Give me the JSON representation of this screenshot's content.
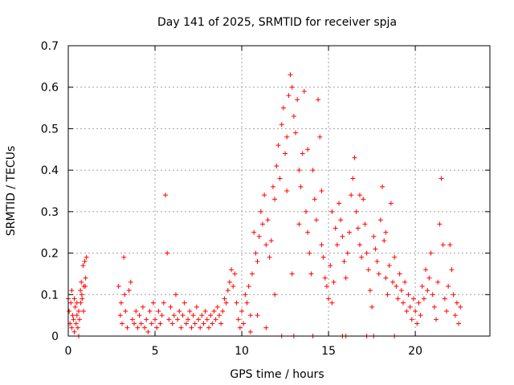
{
  "chart_data": {
    "type": "scatter",
    "title": "Day 141 of 2025, SRMTID for receiver spja",
    "xlabel": "GPS time / hours",
    "ylabel": "SRMTID / TECUs",
    "xlim": [
      0,
      24.3
    ],
    "ylim": [
      0,
      0.7
    ],
    "xticks": [
      0,
      5,
      10,
      15,
      20
    ],
    "yticks": [
      0,
      0.1,
      0.2,
      0.3,
      0.4,
      0.5,
      0.6,
      0.7
    ],
    "grid": true,
    "marker": "+",
    "color": "#ff0000",
    "series": [
      {
        "name": "SRMTID",
        "points": [
          [
            0.0,
            0.09
          ],
          [
            0.05,
            0.06
          ],
          [
            0.1,
            0.03
          ],
          [
            0.15,
            0.08
          ],
          [
            0.2,
            0.02
          ],
          [
            0.25,
            0.05
          ],
          [
            0.3,
            0.04
          ],
          [
            0.35,
            0.01
          ],
          [
            0.4,
            0.07
          ],
          [
            0.45,
            0.03
          ],
          [
            0.5,
            0.05
          ],
          [
            0.55,
            0.02
          ],
          [
            0.6,
            0.06
          ],
          [
            0.65,
            0.04
          ],
          [
            0.7,
            0.11
          ],
          [
            0.75,
            0.13
          ],
          [
            0.8,
            0.09
          ],
          [
            0.85,
            0.17
          ],
          [
            0.9,
            0.12
          ],
          [
            0.95,
            0.18
          ],
          [
            1.0,
            0.14
          ],
          [
            1.05,
            0.19
          ],
          [
            0.72,
            0.08
          ],
          [
            0.78,
            0.1
          ],
          [
            0.88,
            0.06
          ],
          [
            0.98,
            0.12
          ],
          [
            0.2,
            0.11
          ],
          [
            0.35,
            0.09
          ],
          [
            0.5,
            0.08
          ],
          [
            0.6,
            0.0
          ],
          [
            2.9,
            0.12
          ],
          [
            3.0,
            0.05
          ],
          [
            3.05,
            0.08
          ],
          [
            3.1,
            0.03
          ],
          [
            3.2,
            0.19
          ],
          [
            3.25,
            0.1
          ],
          [
            3.3,
            0.06
          ],
          [
            3.4,
            0.02
          ],
          [
            3.5,
            0.11
          ],
          [
            3.6,
            0.13
          ],
          [
            3.7,
            0.04
          ],
          [
            3.8,
            0.03
          ],
          [
            3.9,
            0.06
          ],
          [
            4.0,
            0.02
          ],
          [
            4.1,
            0.05
          ],
          [
            4.2,
            0.03
          ],
          [
            4.3,
            0.07
          ],
          [
            4.4,
            0.02
          ],
          [
            4.5,
            0.04
          ],
          [
            4.6,
            0.01
          ],
          [
            4.7,
            0.06
          ],
          [
            4.8,
            0.03
          ],
          [
            4.9,
            0.08
          ],
          [
            5.0,
            0.04
          ],
          [
            5.1,
            0.02
          ],
          [
            5.2,
            0.06
          ],
          [
            5.3,
            0.03
          ],
          [
            5.4,
            0.05
          ],
          [
            5.5,
            0.08
          ],
          [
            5.6,
            0.34
          ],
          [
            5.7,
            0.2
          ],
          [
            5.8,
            0.04
          ],
          [
            5.9,
            0.07
          ],
          [
            6.0,
            0.03
          ],
          [
            6.1,
            0.05
          ],
          [
            6.2,
            0.1
          ],
          [
            6.3,
            0.04
          ],
          [
            6.4,
            0.06
          ],
          [
            6.5,
            0.02
          ],
          [
            6.6,
            0.05
          ],
          [
            6.7,
            0.08
          ],
          [
            6.8,
            0.03
          ],
          [
            6.9,
            0.04
          ],
          [
            7.0,
            0.06
          ],
          [
            7.1,
            0.02
          ],
          [
            7.2,
            0.05
          ],
          [
            7.3,
            0.03
          ],
          [
            7.4,
            0.07
          ],
          [
            7.5,
            0.04
          ],
          [
            7.6,
            0.02
          ],
          [
            7.7,
            0.05
          ],
          [
            7.8,
            0.03
          ],
          [
            7.9,
            0.06
          ],
          [
            8.0,
            0.04
          ],
          [
            8.1,
            0.02
          ],
          [
            8.2,
            0.05
          ],
          [
            8.3,
            0.03
          ],
          [
            8.4,
            0.06
          ],
          [
            8.5,
            0.04
          ],
          [
            8.6,
            0.07
          ],
          [
            8.7,
            0.05
          ],
          [
            8.8,
            0.03
          ],
          [
            8.9,
            0.06
          ],
          [
            9.0,
            0.09
          ],
          [
            9.1,
            0.08
          ],
          [
            9.2,
            0.11
          ],
          [
            9.3,
            0.13
          ],
          [
            9.4,
            0.16
          ],
          [
            9.5,
            0.12
          ],
          [
            9.6,
            0.15
          ],
          [
            9.7,
            0.08
          ],
          [
            9.8,
            0.04
          ],
          [
            9.9,
            0.02
          ],
          [
            10.0,
            0.06
          ],
          [
            10.1,
            0.03
          ],
          [
            10.2,
            0.1
          ],
          [
            10.3,
            0.08
          ],
          [
            10.4,
            0.12
          ],
          [
            10.5,
            0.05
          ],
          [
            10.6,
            0.15
          ],
          [
            10.7,
            0.25
          ],
          [
            10.8,
            0.2
          ],
          [
            10.9,
            0.18
          ],
          [
            11.0,
            0.24
          ],
          [
            11.1,
            0.3
          ],
          [
            11.2,
            0.27
          ],
          [
            11.3,
            0.34
          ],
          [
            11.4,
            0.22
          ],
          [
            11.5,
            0.28
          ],
          [
            11.6,
            0.19
          ],
          [
            11.7,
            0.23
          ],
          [
            11.8,
            0.36
          ],
          [
            11.9,
            0.33
          ],
          [
            12.0,
            0.41
          ],
          [
            12.1,
            0.46
          ],
          [
            12.2,
            0.38
          ],
          [
            12.3,
            0.51
          ],
          [
            12.4,
            0.55
          ],
          [
            12.5,
            0.44
          ],
          [
            12.6,
            0.48
          ],
          [
            12.7,
            0.58
          ],
          [
            12.8,
            0.63
          ],
          [
            12.9,
            0.6
          ],
          [
            13.0,
            0.53
          ],
          [
            13.1,
            0.49
          ],
          [
            13.2,
            0.57
          ],
          [
            13.3,
            0.4
          ],
          [
            13.4,
            0.36
          ],
          [
            13.5,
            0.44
          ],
          [
            13.6,
            0.59
          ],
          [
            13.7,
            0.3
          ],
          [
            13.8,
            0.25
          ],
          [
            13.9,
            0.2
          ],
          [
            14.0,
            0.15
          ],
          [
            14.1,
            0.4
          ],
          [
            14.2,
            0.33
          ],
          [
            14.3,
            0.28
          ],
          [
            14.4,
            0.57
          ],
          [
            14.5,
            0.48
          ],
          [
            14.6,
            0.22
          ],
          [
            14.7,
            0.19
          ],
          [
            14.8,
            0.14
          ],
          [
            14.9,
            0.12
          ],
          [
            15.0,
            0.09
          ],
          [
            15.1,
            0.17
          ],
          [
            15.2,
            0.08
          ],
          [
            15.3,
            0.13
          ],
          [
            15.4,
            0.26
          ],
          [
            15.5,
            0.22
          ],
          [
            15.6,
            0.32
          ],
          [
            15.7,
            0.28
          ],
          [
            15.8,
            0.24
          ],
          [
            15.9,
            0.18
          ],
          [
            16.0,
            0.14
          ],
          [
            16.1,
            0.2
          ],
          [
            16.2,
            0.25
          ],
          [
            16.3,
            0.34
          ],
          [
            16.4,
            0.38
          ],
          [
            16.5,
            0.43
          ],
          [
            16.6,
            0.3
          ],
          [
            16.7,
            0.26
          ],
          [
            16.8,
            0.22
          ],
          [
            16.9,
            0.19
          ],
          [
            17.0,
            0.33
          ],
          [
            17.1,
            0.27
          ],
          [
            17.2,
            0.2
          ],
          [
            17.3,
            0.16
          ],
          [
            17.4,
            0.11
          ],
          [
            17.5,
            0.07
          ],
          [
            17.6,
            0.24
          ],
          [
            17.7,
            0.21
          ],
          [
            17.8,
            0.18
          ],
          [
            17.9,
            0.15
          ],
          [
            18.0,
            0.28
          ],
          [
            18.1,
            0.36
          ],
          [
            18.2,
            0.23
          ],
          [
            18.3,
            0.14
          ],
          [
            18.4,
            0.1
          ],
          [
            18.5,
            0.17
          ],
          [
            18.6,
            0.32
          ],
          [
            18.7,
            0.13
          ],
          [
            18.8,
            0.19
          ],
          [
            18.9,
            0.12
          ],
          [
            19.0,
            0.09
          ],
          [
            19.1,
            0.15
          ],
          [
            19.2,
            0.11
          ],
          [
            19.3,
            0.08
          ],
          [
            19.4,
            0.13
          ],
          [
            19.5,
            0.06
          ],
          [
            19.6,
            0.1
          ],
          [
            19.7,
            0.07
          ],
          [
            19.8,
            0.04
          ],
          [
            19.9,
            0.09
          ],
          [
            20.0,
            0.06
          ],
          [
            20.1,
            0.03
          ],
          [
            20.2,
            0.08
          ],
          [
            20.3,
            0.05
          ],
          [
            20.4,
            0.12
          ],
          [
            20.5,
            0.09
          ],
          [
            20.6,
            0.16
          ],
          [
            20.7,
            0.11
          ],
          [
            20.8,
            0.14
          ],
          [
            20.9,
            0.2
          ],
          [
            21.0,
            0.1
          ],
          [
            21.1,
            0.07
          ],
          [
            21.2,
            0.04
          ],
          [
            21.3,
            0.13
          ],
          [
            21.4,
            0.27
          ],
          [
            21.5,
            0.38
          ],
          [
            21.6,
            0.22
          ],
          [
            21.7,
            0.09
          ],
          [
            21.8,
            0.06
          ],
          [
            21.9,
            0.12
          ],
          [
            22.0,
            0.22
          ],
          [
            22.1,
            0.16
          ],
          [
            22.2,
            0.1
          ],
          [
            22.3,
            0.05
          ],
          [
            22.4,
            0.08
          ],
          [
            22.5,
            0.03
          ],
          [
            22.6,
            0.07
          ],
          [
            12.3,
            0.0
          ],
          [
            13.0,
            0.0
          ],
          [
            14.1,
            0.0
          ],
          [
            15.8,
            0.0
          ],
          [
            16.0,
            0.0
          ],
          [
            17.2,
            0.0
          ],
          [
            17.6,
            0.0
          ],
          [
            18.8,
            0.0
          ],
          [
            10.5,
            0.01
          ],
          [
            11.4,
            0.02
          ],
          [
            12.6,
            0.35
          ],
          [
            13.3,
            0.27
          ],
          [
            12.9,
            0.15
          ],
          [
            13.8,
            0.45
          ],
          [
            14.6,
            0.35
          ],
          [
            15.2,
            0.3
          ],
          [
            16.8,
            0.34
          ],
          [
            18.3,
            0.25
          ],
          [
            11.9,
            0.1
          ],
          [
            10.9,
            0.05
          ]
        ]
      }
    ]
  }
}
